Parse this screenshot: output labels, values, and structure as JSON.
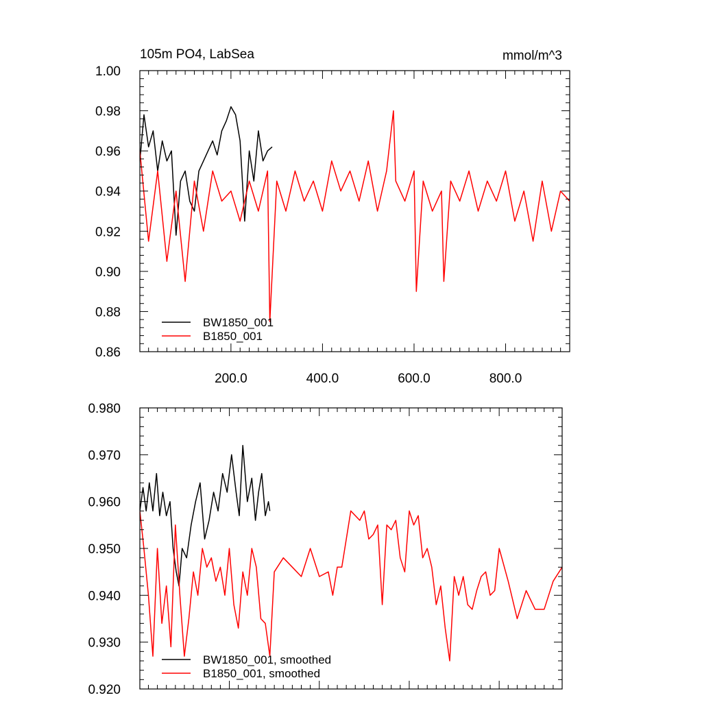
{
  "chart_data": [
    {
      "type": "line",
      "title": "105m PO4, LabSea",
      "units": "mmol/m^3",
      "xlim": [
        1,
        940
      ],
      "ylim": [
        0.86,
        1.0
      ],
      "x_ticks": [
        200,
        400,
        600,
        800
      ],
      "x_tick_labels": [
        "200.0",
        "400.0",
        "600.0",
        "800.0"
      ],
      "y_ticks": [
        0.86,
        0.88,
        0.9,
        0.92,
        0.94,
        0.96,
        0.98,
        1.0
      ],
      "y_tick_labels": [
        "0.86",
        "0.88",
        "0.90",
        "0.92",
        "0.94",
        "0.96",
        "0.98",
        "1.00"
      ],
      "grid": false,
      "legend_position": "bottom-left",
      "series": [
        {
          "name": "BW1850_001",
          "color": "#000000",
          "x": [
            1,
            10,
            20,
            30,
            40,
            50,
            60,
            70,
            80,
            90,
            100,
            110,
            120,
            130,
            140,
            150,
            160,
            170,
            180,
            190,
            200,
            210,
            220,
            230,
            240,
            250,
            260,
            270,
            280,
            290
          ],
          "y": [
            0.955,
            0.978,
            0.962,
            0.97,
            0.95,
            0.965,
            0.955,
            0.96,
            0.918,
            0.945,
            0.95,
            0.935,
            0.93,
            0.95,
            0.955,
            0.96,
            0.965,
            0.958,
            0.97,
            0.975,
            0.982,
            0.978,
            0.965,
            0.925,
            0.96,
            0.945,
            0.97,
            0.955,
            0.96,
            0.962
          ]
        },
        {
          "name": "B1850_001",
          "color": "#ff0000",
          "x": [
            1,
            20,
            40,
            60,
            80,
            100,
            120,
            140,
            160,
            180,
            200,
            220,
            240,
            260,
            280,
            285,
            300,
            320,
            340,
            360,
            380,
            400,
            420,
            440,
            460,
            480,
            500,
            520,
            540,
            555,
            560,
            580,
            600,
            605,
            620,
            640,
            660,
            665,
            680,
            700,
            720,
            740,
            760,
            780,
            800,
            820,
            840,
            860,
            880,
            900,
            920,
            940
          ],
          "y": [
            0.96,
            0.915,
            0.95,
            0.905,
            0.94,
            0.895,
            0.945,
            0.92,
            0.95,
            0.935,
            0.94,
            0.925,
            0.945,
            0.93,
            0.95,
            0.875,
            0.945,
            0.93,
            0.95,
            0.935,
            0.945,
            0.93,
            0.955,
            0.94,
            0.95,
            0.935,
            0.955,
            0.93,
            0.95,
            0.98,
            0.945,
            0.935,
            0.95,
            0.89,
            0.945,
            0.93,
            0.94,
            0.895,
            0.945,
            0.935,
            0.95,
            0.93,
            0.945,
            0.935,
            0.95,
            0.925,
            0.94,
            0.915,
            0.945,
            0.92,
            0.94,
            0.935
          ]
        }
      ]
    },
    {
      "type": "line",
      "title": "",
      "xlim": [
        1,
        940
      ],
      "ylim": [
        0.92,
        0.98
      ],
      "y_ticks": [
        0.92,
        0.93,
        0.94,
        0.95,
        0.96,
        0.97,
        0.98
      ],
      "y_tick_labels": [
        "0.920",
        "0.930",
        "0.940",
        "0.950",
        "0.960",
        "0.970",
        "0.980"
      ],
      "grid": false,
      "legend_position": "bottom-left",
      "series": [
        {
          "name": "BW1850_001, smoothed",
          "color": "#000000",
          "x": [
            1,
            8,
            15,
            22,
            30,
            38,
            45,
            52,
            60,
            68,
            75,
            82,
            88,
            95,
            105,
            115,
            125,
            135,
            145,
            155,
            165,
            175,
            185,
            195,
            205,
            215,
            222,
            230,
            240,
            250,
            258,
            265,
            272,
            280,
            287,
            290
          ],
          "y": [
            0.958,
            0.963,
            0.958,
            0.964,
            0.958,
            0.966,
            0.957,
            0.962,
            0.957,
            0.96,
            0.95,
            0.945,
            0.942,
            0.95,
            0.948,
            0.955,
            0.96,
            0.964,
            0.952,
            0.956,
            0.962,
            0.958,
            0.966,
            0.962,
            0.97,
            0.962,
            0.957,
            0.972,
            0.96,
            0.965,
            0.956,
            0.962,
            0.966,
            0.957,
            0.96,
            0.958
          ]
        },
        {
          "name": "B1850_001, smoothed",
          "color": "#ff0000",
          "x": [
            1,
            10,
            20,
            30,
            40,
            50,
            60,
            70,
            80,
            90,
            100,
            110,
            120,
            130,
            140,
            150,
            160,
            170,
            180,
            190,
            200,
            210,
            220,
            230,
            240,
            250,
            260,
            270,
            280,
            290,
            300,
            320,
            340,
            360,
            380,
            400,
            420,
            430,
            440,
            450,
            470,
            490,
            500,
            510,
            520,
            530,
            540,
            550,
            560,
            570,
            580,
            590,
            600,
            610,
            620,
            630,
            640,
            650,
            660,
            670,
            680,
            690,
            700,
            710,
            720,
            730,
            740,
            750,
            760,
            770,
            780,
            790,
            800,
            820,
            840,
            860,
            880,
            900,
            920,
            940
          ],
          "y": [
            0.958,
            0.95,
            0.94,
            0.927,
            0.95,
            0.934,
            0.942,
            0.929,
            0.955,
            0.94,
            0.927,
            0.935,
            0.945,
            0.94,
            0.95,
            0.946,
            0.948,
            0.943,
            0.946,
            0.94,
            0.95,
            0.938,
            0.933,
            0.945,
            0.94,
            0.95,
            0.946,
            0.935,
            0.934,
            0.927,
            0.945,
            0.948,
            0.946,
            0.944,
            0.95,
            0.944,
            0.945,
            0.94,
            0.946,
            0.946,
            0.958,
            0.956,
            0.958,
            0.952,
            0.953,
            0.955,
            0.938,
            0.955,
            0.954,
            0.956,
            0.948,
            0.945,
            0.958,
            0.955,
            0.957,
            0.948,
            0.95,
            0.946,
            0.938,
            0.942,
            0.933,
            0.926,
            0.944,
            0.94,
            0.944,
            0.938,
            0.937,
            0.941,
            0.944,
            0.945,
            0.94,
            0.941,
            0.95,
            0.943,
            0.935,
            0.941,
            0.937,
            0.937,
            0.943,
            0.946
          ]
        }
      ]
    }
  ]
}
